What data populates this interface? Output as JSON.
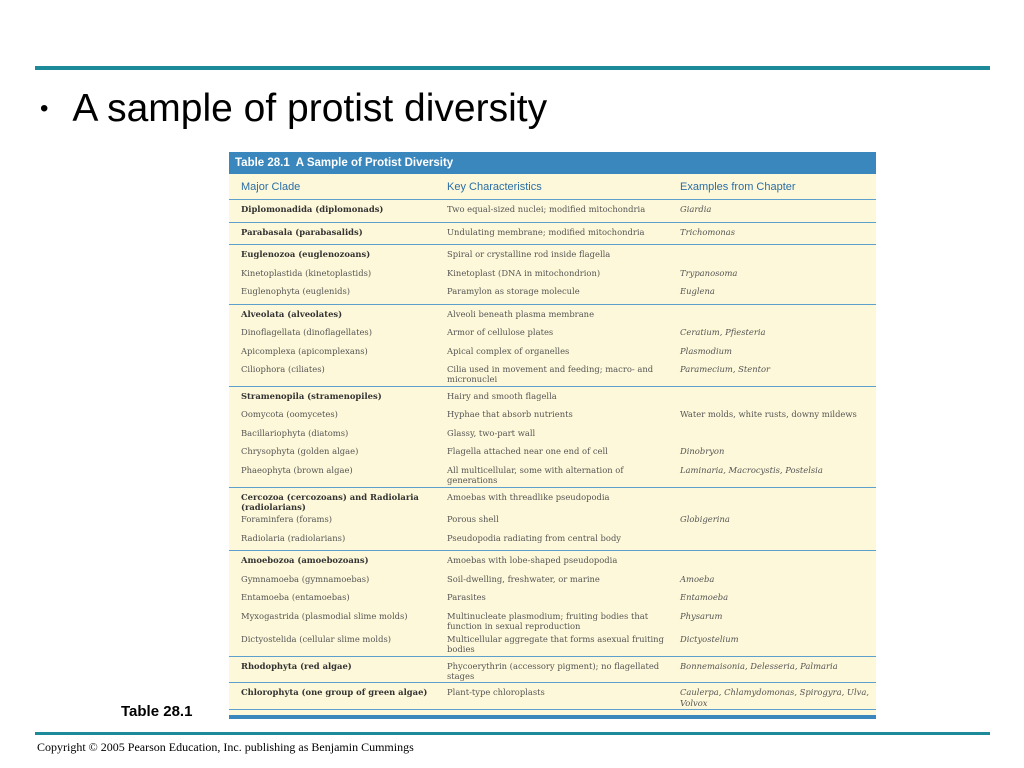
{
  "slide": {
    "bullet_text": "A sample of protist diversity",
    "caption": "Table 28.1",
    "copyright": "Copyright © 2005 Pearson Education, Inc. publishing as Benjamin Cummings"
  },
  "table": {
    "number": "Table 28.1",
    "title": "A Sample of Protist Diversity",
    "columns": [
      "Major Clade",
      "Key Characteristics",
      "Examples from Chapter"
    ],
    "groups": [
      [
        {
          "clade": "Diplomonadida (diplomonads)",
          "bold": true,
          "chars": "Two equal-sized nuclei; modified mitochondria",
          "examples": "Giardia"
        }
      ],
      [
        {
          "clade": "Parabasala (parabasalids)",
          "bold": true,
          "chars": "Undulating membrane; modified mitochondria",
          "examples": "Trichomonas"
        }
      ],
      [
        {
          "clade": "Euglenozoa (euglenozoans)",
          "bold": true,
          "chars": "Spiral or crystalline rod inside flagella",
          "examples": ""
        },
        {
          "clade": "Kinetoplastida (kinetoplastids)",
          "bold": false,
          "chars": "Kinetoplast (DNA in mitochondrion)",
          "examples": "Trypanosoma"
        },
        {
          "clade": "Euglenophyta (euglenids)",
          "bold": false,
          "chars": "Paramylon as storage molecule",
          "examples": "Euglena"
        }
      ],
      [
        {
          "clade": "Alveolata (alveolates)",
          "bold": true,
          "chars": "Alveoli beneath plasma membrane",
          "examples": ""
        },
        {
          "clade": "Dinoflagellata (dinoflagellates)",
          "bold": false,
          "chars": "Armor of cellulose plates",
          "examples": "Ceratium, Pfiesteria"
        },
        {
          "clade": "Apicomplexa (apicomplexans)",
          "bold": false,
          "chars": "Apical complex of organelles",
          "examples": "Plasmodium"
        },
        {
          "clade": "Ciliophora (ciliates)",
          "bold": false,
          "chars": "Cilia used in movement and feeding; macro- and micronuclei",
          "examples": "Paramecium, Stentor"
        }
      ],
      [
        {
          "clade": "Stramenopila (stramenopiles)",
          "bold": true,
          "chars": "Hairy and smooth flagella",
          "examples": ""
        },
        {
          "clade": "Oomycota (oomycetes)",
          "bold": false,
          "chars": "Hyphae that absorb nutrients",
          "examples": "Water molds, white rusts, downy mildews",
          "plain": true
        },
        {
          "clade": "Bacillariophyta (diatoms)",
          "bold": false,
          "chars": "Glassy, two-part wall",
          "examples": ""
        },
        {
          "clade": "Chrysophyta (golden algae)",
          "bold": false,
          "chars": "Flagella attached near one end of cell",
          "examples": "Dinobryon"
        },
        {
          "clade": "Phaeophyta (brown algae)",
          "bold": false,
          "chars": "All multicellular, some with alternation of generations",
          "examples": "Laminaria, Macrocystis, Postelsia"
        }
      ],
      [
        {
          "clade": "Cercozoa (cercozoans) and Radiolaria (radiolarians)",
          "bold": true,
          "chars": "Amoebas with threadlike pseudopodia",
          "examples": ""
        },
        {
          "clade": "Foraminfera (forams)",
          "bold": false,
          "chars": "Porous shell",
          "examples": "Globigerina"
        },
        {
          "clade": "Radiolaria (radiolarians)",
          "bold": false,
          "chars": "Pseudopodia radiating from central body",
          "examples": ""
        }
      ],
      [
        {
          "clade": "Amoebozoa (amoebozoans)",
          "bold": true,
          "chars": "Amoebas with lobe-shaped pseudopodia",
          "examples": ""
        },
        {
          "clade": "Gymnamoeba (gymnamoebas)",
          "bold": false,
          "chars": "Soil-dwelling, freshwater, or marine",
          "examples": "Amoeba"
        },
        {
          "clade": "Entamoeba (entamoebas)",
          "bold": false,
          "chars": "Parasites",
          "examples": "Entamoeba"
        },
        {
          "clade": "Myxogastrida (plasmodial slime molds)",
          "bold": false,
          "chars": "Multinucleate plasmodium; fruiting bodies that function in sexual reproduction",
          "examples": "Physarum"
        },
        {
          "clade": "Dictyostelida (cellular slime molds)",
          "bold": false,
          "chars": "Multicellular aggregate that forms asexual fruiting bodies",
          "examples": "Dictyostelium"
        }
      ],
      [
        {
          "clade": "Rhodophyta (red algae)",
          "bold": true,
          "chars": "Phycoerythrin (accessory pigment); no flagellated stages",
          "examples": "Bonnemaisonia, Delesseria, Palmaria"
        }
      ],
      [
        {
          "clade": "Chlorophyta (one group of green algae)",
          "bold": true,
          "chars": "Plant-type chloroplasts",
          "examples": "Caulerpa, Chlamydomonas, Spirogyra, Ulva, Volvox"
        }
      ]
    ]
  }
}
